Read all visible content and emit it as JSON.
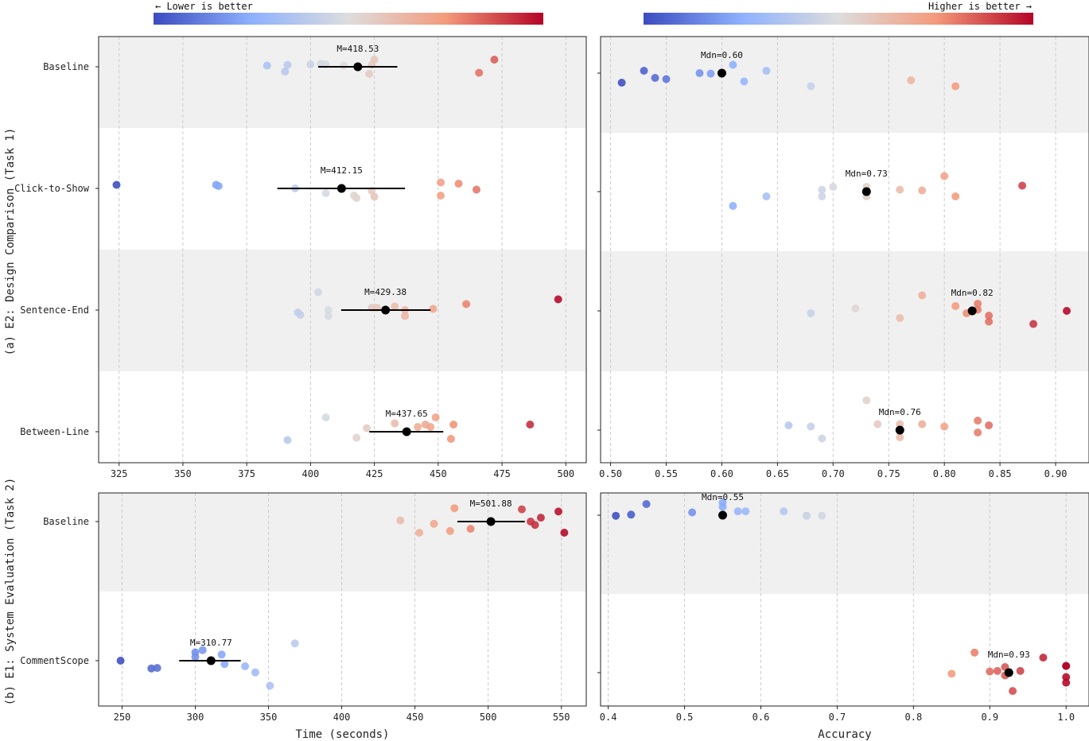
{
  "colorbars": {
    "time_note": "← Lower is better",
    "accuracy_note": "Higher is better →"
  },
  "section_labels": {
    "top": "(a) E2: Design Comparison (Task 1)",
    "bottom": "(b) E1: System Evaluation (Task 2)"
  },
  "chart_data": [
    {
      "id": "e2_time",
      "type": "scatter",
      "metric": "Time (seconds)",
      "xlim": [
        317,
        508
      ],
      "xticks": [
        325,
        350,
        375,
        400,
        425,
        450,
        475,
        500
      ],
      "colorscale": "coolwarm",
      "color_range": [
        325,
        497
      ],
      "categories": [
        "Baseline",
        "Click-to-Show",
        "Sentence-End",
        "Between-Line"
      ],
      "series": [
        {
          "name": "Baseline",
          "summary_label": "M=418.53",
          "summary": 418.53,
          "err": [
            403,
            434
          ],
          "points": [
            [
              383,
              0.05
            ],
            [
              390,
              -0.2
            ],
            [
              391,
              0.08
            ],
            [
              400,
              0.1
            ],
            [
              404,
              0.12
            ],
            [
              406,
              0.1
            ],
            [
              413,
              0.05
            ],
            [
              423,
              -0.3
            ],
            [
              425,
              0.3
            ],
            [
              424,
              0.08
            ],
            [
              466,
              -0.25
            ],
            [
              472,
              0.3
            ]
          ]
        },
        {
          "name": "Click-to-Show",
          "summary_label": "M=412.15",
          "summary": 412.15,
          "err": [
            387,
            437
          ],
          "points": [
            [
              324,
              0.15
            ],
            [
              363,
              0.15
            ],
            [
              364,
              0.1
            ],
            [
              394,
              0.0
            ],
            [
              406,
              -0.2
            ],
            [
              418,
              -0.4
            ],
            [
              417,
              -0.3
            ],
            [
              424,
              -0.1
            ],
            [
              425,
              -0.35
            ],
            [
              451,
              0.25
            ],
            [
              451,
              -0.3
            ],
            [
              458,
              0.2
            ],
            [
              465,
              -0.05
            ]
          ]
        },
        {
          "name": "Sentence-End",
          "summary_label": "M=429.38",
          "summary": 429.38,
          "err": [
            412,
            447
          ],
          "points": [
            [
              395,
              -0.1
            ],
            [
              396,
              -0.2
            ],
            [
              403,
              0.75
            ],
            [
              407,
              0.0
            ],
            [
              407,
              -0.25
            ],
            [
              424,
              0.1
            ],
            [
              426,
              0.1
            ],
            [
              433,
              0.15
            ],
            [
              437,
              0.0
            ],
            [
              437,
              -0.25
            ],
            [
              448,
              0.05
            ],
            [
              461,
              0.25
            ],
            [
              497,
              0.45
            ]
          ]
        },
        {
          "name": "Between-Line",
          "summary_label": "M=437.65",
          "summary": 437.65,
          "err": [
            423,
            452
          ],
          "points": [
            [
              391,
              -0.35
            ],
            [
              406,
              0.6
            ],
            [
              418,
              -0.25
            ],
            [
              422,
              0.15
            ],
            [
              433,
              0.35
            ],
            [
              442,
              0.2
            ],
            [
              445,
              0.3
            ],
            [
              447,
              0.2
            ],
            [
              449,
              0.6
            ],
            [
              455,
              -0.3
            ],
            [
              456,
              0.3
            ],
            [
              486,
              0.3
            ]
          ]
        }
      ]
    },
    {
      "id": "e2_accuracy",
      "type": "scatter",
      "metric": "Accuracy",
      "xlim": [
        0.491,
        0.93
      ],
      "xticks": [
        0.5,
        0.55,
        0.6,
        0.65,
        0.7,
        0.75,
        0.8,
        0.85,
        0.9
      ],
      "tick_labels": [
        "0.50",
        "0.55",
        "0.60",
        "0.65",
        "0.70",
        "0.75",
        "0.80",
        "0.85",
        "0.90"
      ],
      "colorscale": "coolwarm",
      "color_range": [
        0.51,
        0.91
      ],
      "categories": [
        "Baseline",
        "Click-to-Show",
        "Sentence-End",
        "Between-Line"
      ],
      "series": [
        {
          "name": "Baseline",
          "summary_label": "Mdn=0.60",
          "summary": 0.6,
          "points": [
            [
              0.51,
              -0.4
            ],
            [
              0.53,
              0.1
            ],
            [
              0.54,
              -0.2
            ],
            [
              0.55,
              -0.25
            ],
            [
              0.58,
              0.0
            ],
            [
              0.59,
              -0.02
            ],
            [
              0.61,
              0.35
            ],
            [
              0.62,
              -0.35
            ],
            [
              0.64,
              0.1
            ],
            [
              0.68,
              -0.55
            ],
            [
              0.77,
              -0.3
            ],
            [
              0.81,
              -0.55
            ]
          ]
        },
        {
          "name": "Click-to-Show",
          "summary_label": "Mdn=0.73",
          "summary": 0.73,
          "points": [
            [
              0.61,
              -0.6
            ],
            [
              0.64,
              -0.2
            ],
            [
              0.69,
              0.08
            ],
            [
              0.69,
              -0.2
            ],
            [
              0.7,
              0.2
            ],
            [
              0.73,
              0.2
            ],
            [
              0.73,
              -0.2
            ],
            [
              0.76,
              0.08
            ],
            [
              0.78,
              0.05
            ],
            [
              0.8,
              0.65
            ],
            [
              0.81,
              -0.2
            ],
            [
              0.87,
              0.25
            ]
          ]
        },
        {
          "name": "Sentence-End",
          "summary_label": "Mdn=0.82",
          "summary": 0.825,
          "points": [
            [
              0.68,
              -0.1
            ],
            [
              0.72,
              0.1
            ],
            [
              0.76,
              -0.3
            ],
            [
              0.78,
              0.65
            ],
            [
              0.81,
              0.2
            ],
            [
              0.82,
              -0.1
            ],
            [
              0.83,
              0.3
            ],
            [
              0.83,
              0.05
            ],
            [
              0.84,
              -0.2
            ],
            [
              0.84,
              -0.45
            ],
            [
              0.88,
              -0.55
            ],
            [
              0.91,
              0.0
            ]
          ]
        },
        {
          "name": "Between-Line",
          "summary_label": "Mdn=0.76",
          "summary": 0.76,
          "points": [
            [
              0.66,
              0.2
            ],
            [
              0.68,
              0.15
            ],
            [
              0.69,
              -0.35
            ],
            [
              0.73,
              1.25
            ],
            [
              0.74,
              0.25
            ],
            [
              0.76,
              0.25
            ],
            [
              0.76,
              -0.3
            ],
            [
              0.78,
              0.25
            ],
            [
              0.8,
              0.15
            ],
            [
              0.83,
              0.4
            ],
            [
              0.83,
              -0.1
            ],
            [
              0.84,
              0.2
            ]
          ]
        }
      ]
    },
    {
      "id": "e1_time",
      "type": "scatter",
      "metric": "Time (seconds)",
      "xlabel": "Time (seconds)",
      "xlim": [
        234,
        567
      ],
      "xticks": [
        250,
        300,
        350,
        400,
        450,
        500,
        550
      ],
      "colorscale": "coolwarm",
      "color_range": [
        249,
        552
      ],
      "categories": [
        "Baseline",
        "CommentScope"
      ],
      "series": [
        {
          "name": "Baseline",
          "summary_label": "M=501.88",
          "summary": 501.88,
          "err": [
            479,
            525
          ],
          "points": [
            [
              440,
              0.02
            ],
            [
              453,
              -0.2
            ],
            [
              463,
              -0.04
            ],
            [
              474,
              -0.17
            ],
            [
              477,
              0.24
            ],
            [
              488,
              -0.13
            ],
            [
              523,
              0.22
            ],
            [
              529,
              0.0
            ],
            [
              532,
              -0.06
            ],
            [
              536,
              0.07
            ],
            [
              548,
              0.18
            ],
            [
              552,
              -0.2
            ]
          ]
        },
        {
          "name": "CommentScope",
          "summary_label": "M=310.77",
          "summary": 310.77,
          "err": [
            289,
            331
          ],
          "points": [
            [
              249,
              0.0
            ],
            [
              270,
              -0.14
            ],
            [
              274,
              -0.13
            ],
            [
              300,
              0.15
            ],
            [
              300,
              0.07
            ],
            [
              305,
              0.19
            ],
            [
              318,
              0.11
            ],
            [
              320,
              -0.06
            ],
            [
              334,
              -0.1
            ],
            [
              341,
              -0.21
            ],
            [
              351,
              -0.45
            ],
            [
              368,
              0.31
            ]
          ]
        }
      ]
    },
    {
      "id": "e1_accuracy",
      "type": "scatter",
      "metric": "Accuracy",
      "xlabel": "Accuracy",
      "xlim": [
        0.39,
        1.03
      ],
      "xticks": [
        0.4,
        0.5,
        0.6,
        0.7,
        0.8,
        0.9,
        1.0
      ],
      "tick_labels": [
        "0.4",
        "0.5",
        "0.6",
        "0.7",
        "0.8",
        "0.9",
        "1.0"
      ],
      "colorscale": "coolwarm",
      "color_range": [
        0.41,
        1.0
      ],
      "categories": [
        "Baseline",
        "CommentScope"
      ],
      "series": [
        {
          "name": "Baseline",
          "summary_label": "Mdn=0.55",
          "summary": 0.55,
          "points": [
            [
              0.41,
              -0.01
            ],
            [
              0.43,
              0.01
            ],
            [
              0.45,
              0.2
            ],
            [
              0.51,
              0.05
            ],
            [
              0.55,
              0.15
            ],
            [
              0.55,
              0.23
            ],
            [
              0.57,
              0.07
            ],
            [
              0.58,
              0.07
            ],
            [
              0.63,
              0.07
            ],
            [
              0.66,
              -0.01
            ],
            [
              0.68,
              -0.01
            ]
          ]
        },
        {
          "name": "CommentScope",
          "summary_label": "Mdn=0.93",
          "summary": 0.925,
          "points": [
            [
              0.85,
              -0.02
            ],
            [
              0.88,
              0.36
            ],
            [
              0.9,
              0.02
            ],
            [
              0.91,
              0.03
            ],
            [
              0.92,
              0.1
            ],
            [
              0.92,
              -0.05
            ],
            [
              0.93,
              -0.33
            ],
            [
              0.94,
              0.03
            ],
            [
              0.97,
              0.27
            ],
            [
              1.0,
              0.12
            ],
            [
              1.0,
              -0.08
            ],
            [
              1.0,
              -0.18
            ],
            [
              1.0,
              0.12
            ]
          ]
        }
      ]
    }
  ]
}
